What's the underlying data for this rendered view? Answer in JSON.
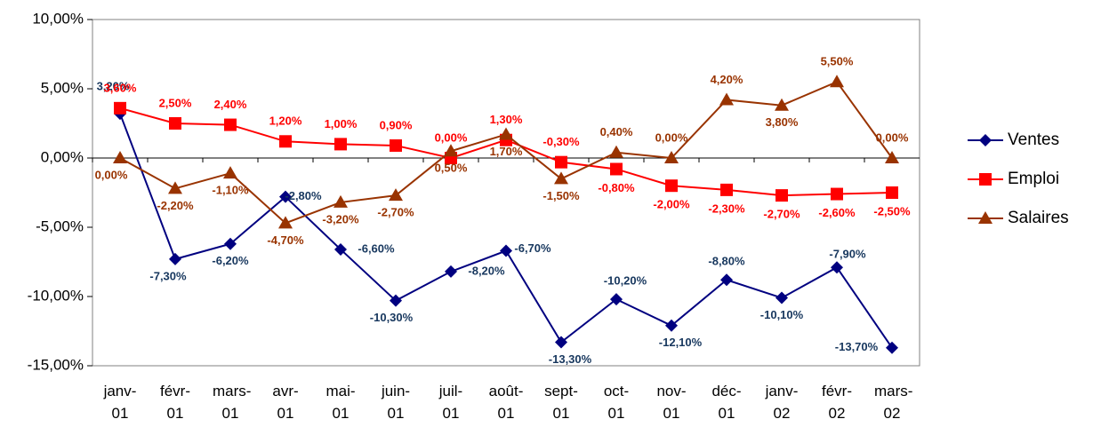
{
  "chart_data": {
    "type": "line",
    "categories": [
      "janv-01",
      "févr-01",
      "mars-01",
      "avr-01",
      "mai-01",
      "juin-01",
      "juil-01",
      "août-01",
      "sept-01",
      "oct-01",
      "nov-01",
      "déc-01",
      "janv-02",
      "févr-02",
      "mars-02"
    ],
    "series": [
      {
        "name": "Ventes",
        "color": "#000080",
        "label_color": "#17375e",
        "marker": "diamond",
        "values": [
          3.2,
          -7.3,
          -6.2,
          -2.8,
          -6.6,
          -10.3,
          -8.2,
          -6.7,
          -13.3,
          -10.2,
          -12.1,
          -8.8,
          -10.1,
          -7.9,
          -13.7
        ],
        "value_labels": [
          "3,20%",
          "-7,30%",
          "-6,20%",
          "-2,80%",
          "-6,60%",
          "-10,30%",
          "-8,20%",
          "-6,70%",
          "-13,30%",
          "-10,20%",
          "-12,10%",
          "-8,80%",
          "-10,10%",
          "-7,90%",
          "-13,70%"
        ]
      },
      {
        "name": "Emploi",
        "color": "#ff0000",
        "label_color": "#ff0000",
        "marker": "square",
        "values": [
          3.6,
          2.5,
          2.4,
          1.2,
          1.0,
          0.9,
          0.0,
          1.3,
          -0.3,
          -0.8,
          -2.0,
          -2.3,
          -2.7,
          -2.6,
          -2.5
        ],
        "value_labels": [
          "3,60%",
          "2,50%",
          "2,40%",
          "1,20%",
          "1,00%",
          "0,90%",
          "0,00%",
          "1,30%",
          "-0,30%",
          "-0,80%",
          "-2,00%",
          "-2,30%",
          "-2,70%",
          "-2,60%",
          "-2,50%"
        ]
      },
      {
        "name": "Salaires",
        "color": "#993300",
        "label_color": "#993300",
        "marker": "triangle",
        "values": [
          0.0,
          -2.2,
          -1.1,
          -4.7,
          -3.2,
          -2.7,
          0.5,
          1.7,
          -1.5,
          0.4,
          0.0,
          4.2,
          3.8,
          5.5,
          0.0
        ],
        "value_labels": [
          "0,00%",
          "-2,20%",
          "-1,10%",
          "-4,70%",
          "-3,20%",
          "-2,70%",
          "0,50%",
          "1,70%",
          "-1,50%",
          "0,40%",
          "0,00%",
          "4,20%",
          "3,80%",
          "5,50%",
          "0,00%"
        ]
      }
    ],
    "ylim": [
      -15,
      10
    ],
    "yticks": [
      {
        "value": -15,
        "label": "-15,00%"
      },
      {
        "value": -10,
        "label": "-10,00%"
      },
      {
        "value": -5,
        "label": "-5,00%"
      },
      {
        "value": 0,
        "label": "0,00%"
      },
      {
        "value": 5,
        "label": "5,00%"
      },
      {
        "value": 10,
        "label": "10,00%"
      }
    ],
    "legend": "right"
  }
}
